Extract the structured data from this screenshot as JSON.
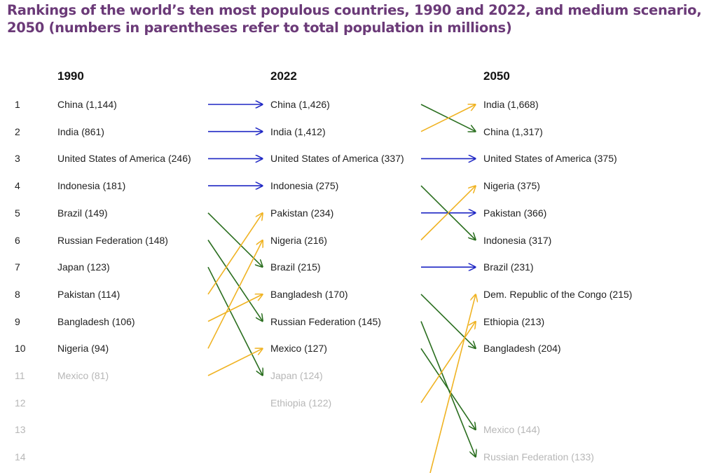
{
  "title": "Rankings of the world’s ten most populous countries, 1990 and 2022, and medium scenario, 2050 (numbers in parentheses refer to total population in millions)",
  "colors": {
    "title": "#6b3a78",
    "same": "#1f27c4",
    "up": "#f0b323",
    "down": "#2a6e1f",
    "dim": "#b7b7b7"
  },
  "chart_data": {
    "type": "slope-ranking",
    "columns": [
      "1990",
      "2022",
      "2050"
    ],
    "ranks": [
      "1",
      "2",
      "3",
      "4",
      "5",
      "6",
      "7",
      "8",
      "9",
      "10",
      "11",
      "12",
      "13",
      "14"
    ],
    "top_n": 10,
    "entries": [
      [
        {
          "rank": 1,
          "label": "China (1,144)"
        },
        {
          "rank": 2,
          "label": "India (861)"
        },
        {
          "rank": 3,
          "label": "United States of America (246)"
        },
        {
          "rank": 4,
          "label": "Indonesia (181)"
        },
        {
          "rank": 5,
          "label": "Brazil (149)"
        },
        {
          "rank": 6,
          "label": "Russian Federation (148)"
        },
        {
          "rank": 7,
          "label": "Japan (123)"
        },
        {
          "rank": 8,
          "label": "Pakistan (114)"
        },
        {
          "rank": 9,
          "label": "Bangladesh (106)"
        },
        {
          "rank": 10,
          "label": "Nigeria (94)"
        },
        {
          "rank": 11,
          "label": "Mexico (81)"
        }
      ],
      [
        {
          "rank": 1,
          "label": "China (1,426)"
        },
        {
          "rank": 2,
          "label": "India (1,412)"
        },
        {
          "rank": 3,
          "label": "United States of America (337)"
        },
        {
          "rank": 4,
          "label": "Indonesia (275)"
        },
        {
          "rank": 5,
          "label": "Pakistan (234)"
        },
        {
          "rank": 6,
          "label": "Nigeria (216)"
        },
        {
          "rank": 7,
          "label": "Brazil (215)"
        },
        {
          "rank": 8,
          "label": "Bangladesh (170)"
        },
        {
          "rank": 9,
          "label": "Russian Federation (145)"
        },
        {
          "rank": 10,
          "label": "Mexico (127)"
        },
        {
          "rank": 11,
          "label": "Japan (124)"
        },
        {
          "rank": 12,
          "label": "Ethiopia (122)"
        }
      ],
      [
        {
          "rank": 1,
          "label": "India (1,668)"
        },
        {
          "rank": 2,
          "label": "China (1,317)"
        },
        {
          "rank": 3,
          "label": "United States of America (375)"
        },
        {
          "rank": 4,
          "label": "Nigeria (375)"
        },
        {
          "rank": 5,
          "label": "Pakistan (366)"
        },
        {
          "rank": 6,
          "label": "Indonesia (317)"
        },
        {
          "rank": 7,
          "label": "Brazil (231)"
        },
        {
          "rank": 8,
          "label": "Dem. Republic of the Congo (215)"
        },
        {
          "rank": 9,
          "label": "Ethiopia (213)"
        },
        {
          "rank": 10,
          "label": "Bangladesh (204)"
        },
        {
          "rank": 13,
          "label": "Mexico (144)"
        },
        {
          "rank": 14,
          "label": "Russian Federation (133)"
        }
      ]
    ],
    "transitions": [
      [
        {
          "from": 1,
          "to": 1,
          "type": "same"
        },
        {
          "from": 2,
          "to": 2,
          "type": "same"
        },
        {
          "from": 3,
          "to": 3,
          "type": "same"
        },
        {
          "from": 4,
          "to": 4,
          "type": "same"
        },
        {
          "from": 5,
          "to": 7,
          "type": "down"
        },
        {
          "from": 6,
          "to": 9,
          "type": "down"
        },
        {
          "from": 7,
          "to": 11,
          "type": "down"
        },
        {
          "from": 8,
          "to": 5,
          "type": "up"
        },
        {
          "from": 9,
          "to": 8,
          "type": "up"
        },
        {
          "from": 10,
          "to": 6,
          "type": "up"
        },
        {
          "from": 11,
          "to": 10,
          "type": "up"
        }
      ],
      [
        {
          "from": 1,
          "to": 2,
          "type": "down"
        },
        {
          "from": 2,
          "to": 1,
          "type": "up"
        },
        {
          "from": 3,
          "to": 3,
          "type": "same"
        },
        {
          "from": 4,
          "to": 6,
          "type": "down"
        },
        {
          "from": 5,
          "to": 5,
          "type": "same"
        },
        {
          "from": 6,
          "to": 4,
          "type": "up"
        },
        {
          "from": 7,
          "to": 7,
          "type": "same"
        },
        {
          "from": 8,
          "to": 10,
          "type": "down"
        },
        {
          "from": 9,
          "to": 14,
          "type": "down"
        },
        {
          "from": 10,
          "to": 13,
          "type": "down"
        },
        {
          "from": 12,
          "to": 9,
          "type": "up"
        },
        {
          "from": null,
          "to": 8,
          "type": "up"
        }
      ]
    ]
  }
}
